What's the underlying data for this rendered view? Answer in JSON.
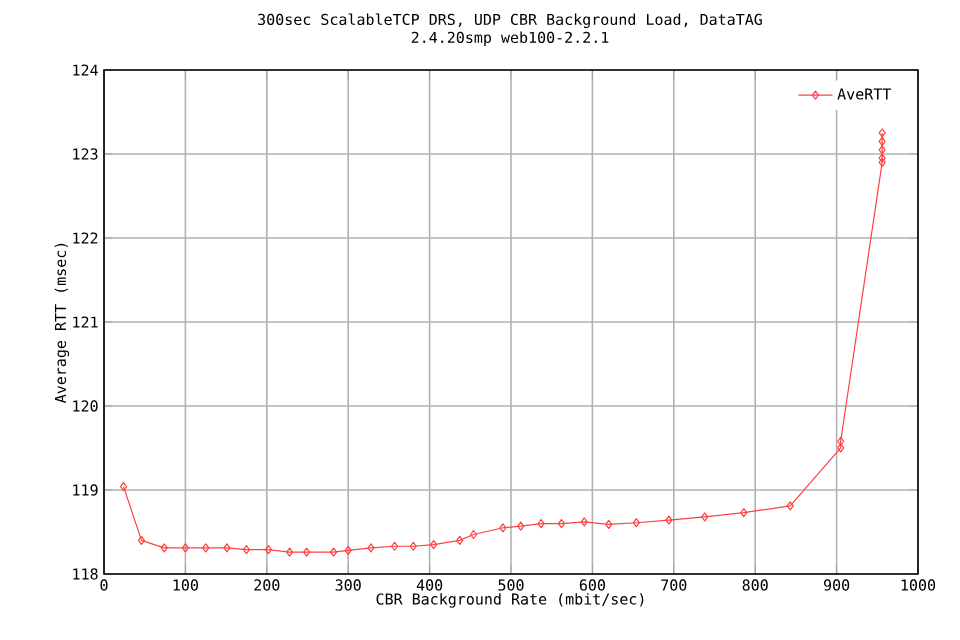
{
  "chart_data": {
    "type": "line",
    "title": "300sec ScalableTCP DRS, UDP CBR Background Load, DataTAG",
    "subtitle": "2.4.20smp web100-2.2.1",
    "xlabel": "CBR Background Rate (mbit/sec)",
    "ylabel": "Average RTT (msec)",
    "x": [
      24,
      46,
      74,
      100,
      125,
      151,
      175,
      202,
      228,
      249,
      282,
      300,
      328,
      357,
      380,
      405,
      437,
      454,
      490,
      512,
      537,
      562,
      590,
      620,
      654,
      694,
      738,
      786,
      843,
      905,
      905,
      956,
      956,
      956,
      956,
      956
    ],
    "series": [
      {
        "name": "AveRTT",
        "color": "#ff4040",
        "values": [
          119.04,
          118.4,
          118.31,
          118.31,
          118.31,
          118.31,
          118.29,
          118.29,
          118.26,
          118.26,
          118.26,
          118.28,
          118.31,
          118.33,
          118.33,
          118.35,
          118.4,
          118.47,
          118.55,
          118.57,
          118.6,
          118.6,
          118.62,
          118.59,
          118.61,
          118.64,
          118.68,
          118.73,
          118.81,
          119.5,
          119.58,
          122.9,
          122.95,
          123.05,
          123.15,
          123.25
        ]
      }
    ],
    "xlim": [
      0,
      1000
    ],
    "xticks": [
      0,
      100,
      200,
      300,
      400,
      500,
      600,
      700,
      800,
      900,
      1000
    ],
    "ylim": [
      118,
      124
    ],
    "yticks": [
      118,
      119,
      120,
      121,
      122,
      123,
      124
    ],
    "grid": true,
    "legend": "top right",
    "marker": "diamond",
    "line_style": "solid"
  }
}
